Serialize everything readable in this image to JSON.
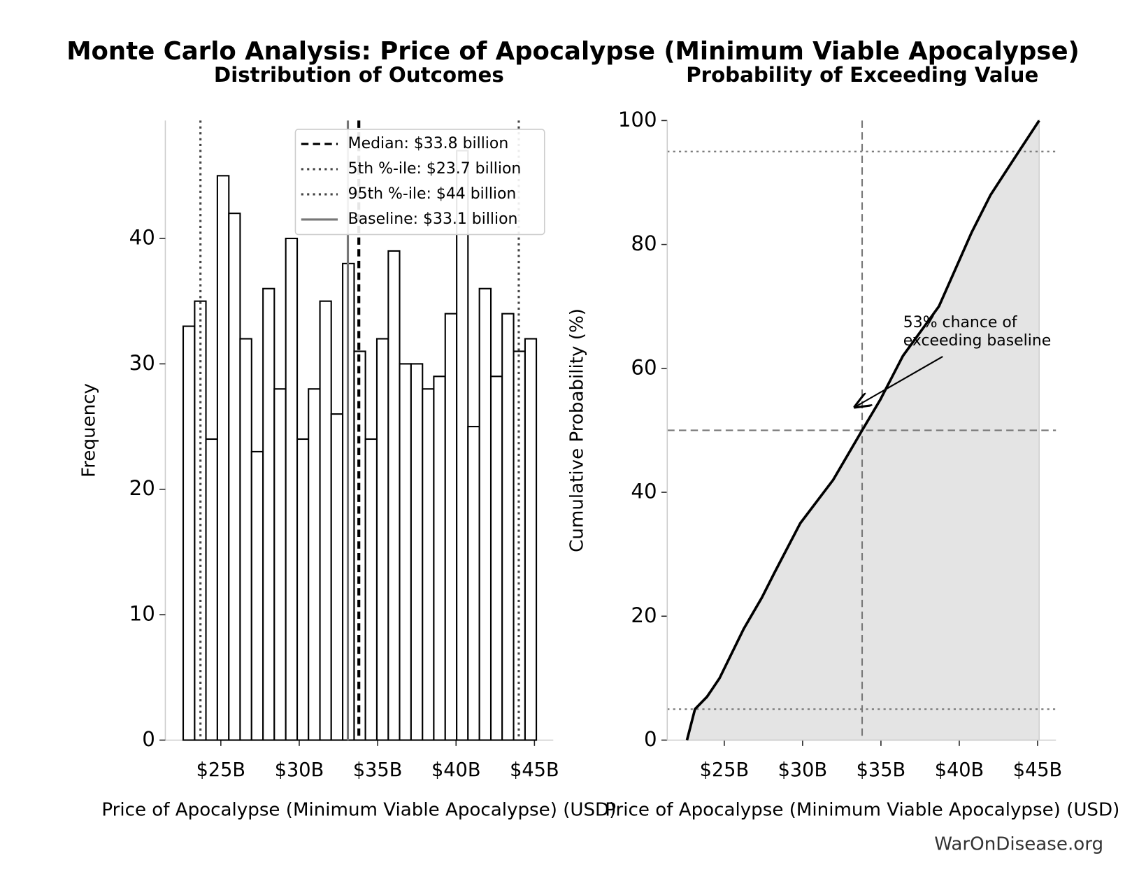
{
  "title": "Monte Carlo Analysis: Price of Apocalypse (Minimum Viable Apocalypse)",
  "watermark": "WarOnDisease.org",
  "chart_data": [
    {
      "type": "histogram",
      "title": "Distribution of Outcomes",
      "xlabel": "Price of Apocalypse (Minimum Viable Apocalypse) (USD)",
      "ylabel": "Frequency",
      "bins": [
        22.6,
        23.33,
        24.05,
        24.78,
        25.51,
        26.23,
        26.96,
        27.69,
        28.41,
        29.14,
        29.87,
        30.59,
        31.32,
        32.04,
        32.77,
        33.5,
        34.22,
        34.95,
        35.68,
        36.4,
        37.13,
        37.86,
        38.58,
        39.31,
        40.04,
        40.76,
        41.49,
        42.22,
        42.94,
        43.67,
        44.4,
        45.12
      ],
      "values": [
        33,
        35,
        24,
        45,
        42,
        32,
        23,
        36,
        28,
        40,
        24,
        28,
        35,
        26,
        38,
        31,
        24,
        32,
        39,
        30,
        30,
        28,
        29,
        34,
        47,
        25,
        36,
        29,
        34,
        31,
        32
      ],
      "color": "#ffffff",
      "edgecolor": "#000000",
      "xlim": [
        21.46,
        46.2
      ],
      "ylim": [
        0,
        49.4
      ],
      "xticks": [
        {
          "value": 25,
          "label": "$25B"
        },
        {
          "value": 30,
          "label": "$30B"
        },
        {
          "value": 35,
          "label": "$35B"
        },
        {
          "value": 40,
          "label": "$40B"
        },
        {
          "value": 45,
          "label": "$45B"
        }
      ],
      "yticks": [
        0,
        10,
        20,
        30,
        40
      ],
      "vlines": [
        {
          "name": "Median: $33.8 billion",
          "value": 33.8,
          "style": "dashed",
          "color": "#000000"
        },
        {
          "name": "5th %-ile: $23.7 billion",
          "value": 23.7,
          "style": "dotted",
          "color": "#444444"
        },
        {
          "name": "95th %-ile: $44 billion",
          "value": 44,
          "style": "dotted",
          "color": "#444444"
        },
        {
          "name": "Baseline: $33.1 billion",
          "value": 33.1,
          "style": "solid",
          "color": "#777777"
        }
      ],
      "legend": "upper right"
    },
    {
      "type": "line",
      "title": "Probability of Exceeding Value",
      "xlabel": "Price of Apocalypse (Minimum Viable Apocalypse) (USD)",
      "ylabel": "Cumulative Probability (%)",
      "x": [
        22.62,
        23.13,
        23.9,
        24.7,
        26.25,
        27.4,
        28.2,
        29.85,
        31.95,
        33.8,
        34.97,
        36.4,
        38.7,
        40.1,
        40.8,
        42.0,
        43.8,
        45.1
      ],
      "values": [
        0,
        5,
        7,
        10,
        18,
        23,
        27,
        35,
        42,
        50,
        55,
        62,
        70,
        78,
        82,
        88,
        95,
        100
      ],
      "color": "#000000",
      "fill": "#e4e4e4",
      "xlim": [
        21.36,
        46.17
      ],
      "ylim": [
        0,
        100
      ],
      "xticks": [
        {
          "value": 25,
          "label": "$25B"
        },
        {
          "value": 30,
          "label": "$30B"
        },
        {
          "value": 35,
          "label": "$35B"
        },
        {
          "value": 40,
          "label": "$40B"
        },
        {
          "value": 45,
          "label": "$45B"
        }
      ],
      "yticks": [
        0,
        20,
        40,
        60,
        80,
        100
      ],
      "hlines": [
        {
          "value": 95,
          "style": "dotted"
        },
        {
          "value": 5,
          "style": "dotted"
        },
        {
          "value": 50,
          "style": "dashed"
        }
      ],
      "vlines": [
        {
          "value": 33.8,
          "style": "dashed"
        }
      ],
      "annotation": "53% chance of\nexceeding baseline"
    }
  ]
}
